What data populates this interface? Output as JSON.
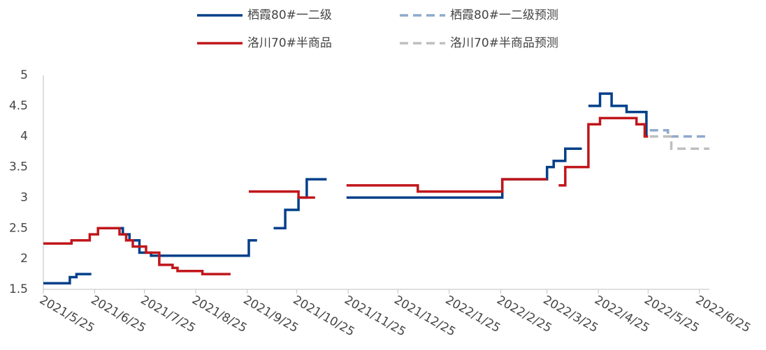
{
  "chart_data": {
    "type": "line",
    "xlim": [
      "2021/5/25",
      "2022/7/1"
    ],
    "xticks": [
      "2021/5/25",
      "2021/6/25",
      "2021/7/25",
      "2021/8/25",
      "2021/9/25",
      "2021/10/25",
      "2021/11/25",
      "2021/12/25",
      "2022/1/25",
      "2022/2/25",
      "2022/3/25",
      "2022/4/25",
      "2022/5/25",
      "2022/6/25"
    ],
    "ylim": [
      1.5,
      5
    ],
    "yticks": [
      1.5,
      2,
      2.5,
      3,
      3.5,
      4,
      4.5,
      5
    ],
    "series": [
      {
        "name": "栖霞80#一二级",
        "color": "#003f8a",
        "dash": false,
        "x": [
          "2021/5/25",
          "2021/6/10",
          "2021/6/10",
          "2021/6/14",
          "2021/6/14",
          "2021/6/23",
          null,
          "2021/6/27",
          "2021/7/12",
          "2021/7/12",
          "2021/7/16",
          "2021/7/16",
          "2021/7/22",
          "2021/7/22",
          "2021/7/29",
          "2021/7/29",
          "2021/9/26",
          "2021/9/26",
          "2021/10/1",
          null,
          "2021/10/11",
          "2021/10/18",
          "2021/10/18",
          "2021/10/26",
          "2021/10/26",
          "2021/10/31",
          "2021/10/31",
          "2021/11/12",
          null,
          "2021/11/24",
          "2022/2/26",
          "2022/2/26",
          "2022/3/25",
          "2022/3/25",
          "2022/3/29",
          "2022/3/29",
          "2022/4/5",
          "2022/4/5",
          "2022/4/15",
          null,
          "2022/4/19",
          "2022/4/26",
          "2022/4/26",
          "2022/5/3",
          "2022/5/3",
          "2022/5/12",
          "2022/5/12",
          "2022/5/24",
          "2022/5/24"
        ],
        "values": [
          1.6,
          1.6,
          1.7,
          1.7,
          1.75,
          1.75,
          null,
          2.5,
          2.5,
          2.4,
          2.4,
          2.3,
          2.3,
          2.1,
          2.1,
          2.05,
          2.05,
          2.3,
          2.3,
          null,
          2.5,
          2.5,
          2.8,
          2.8,
          3.0,
          3.0,
          3.3,
          3.3,
          null,
          3.0,
          3.0,
          3.3,
          3.3,
          3.5,
          3.5,
          3.6,
          3.6,
          3.8,
          3.8,
          null,
          4.5,
          4.5,
          4.7,
          4.7,
          4.5,
          4.5,
          4.4,
          4.4,
          4.0
        ]
      },
      {
        "name": "栖霞80#一二级预测",
        "color": "#8ea9cc",
        "dash": true,
        "x": [
          "2022/5/26",
          "2022/6/6",
          "2022/6/6",
          "2022/7/1"
        ],
        "values": [
          4.1,
          4.1,
          4.0,
          4.0
        ]
      },
      {
        "name": "洛川70#半商品",
        "color": "#c0161b",
        "dash": false,
        "x": [
          "2021/5/25",
          "2021/6/11",
          "2021/6/11",
          "2021/6/22",
          "2021/6/22",
          "2021/6/27",
          "2021/6/27",
          "2021/7/10",
          "2021/7/10",
          "2021/7/14",
          "2021/7/14",
          "2021/7/18",
          "2021/7/18",
          "2021/7/26",
          "2021/7/26",
          "2021/8/3",
          "2021/8/3",
          "2021/8/11",
          "2021/8/11",
          "2021/8/14",
          "2021/8/14",
          "2021/8/29",
          "2021/8/29",
          "2021/9/15",
          null,
          "2021/9/26",
          "2021/10/26",
          "2021/10/26",
          "2021/11/5",
          null,
          "2021/11/24",
          "2022/1/6",
          "2022/1/6",
          "2022/2/26",
          "2022/2/26",
          "2022/3/25",
          null,
          "2022/4/1",
          "2022/4/5",
          "2022/4/5",
          "2022/4/19",
          "2022/4/19",
          "2022/4/26",
          "2022/4/26",
          "2022/5/18",
          "2022/5/18",
          "2022/5/23",
          "2022/5/23",
          "2022/5/25"
        ],
        "values": [
          2.25,
          2.25,
          2.3,
          2.3,
          2.4,
          2.4,
          2.5,
          2.5,
          2.4,
          2.4,
          2.3,
          2.3,
          2.2,
          2.2,
          2.1,
          2.1,
          1.9,
          1.9,
          1.85,
          1.85,
          1.8,
          1.8,
          1.75,
          1.75,
          null,
          3.1,
          3.1,
          3.0,
          3.0,
          null,
          3.2,
          3.2,
          3.1,
          3.1,
          3.3,
          3.3,
          null,
          3.2,
          3.2,
          3.5,
          3.5,
          4.2,
          4.2,
          4.3,
          4.3,
          4.2,
          4.2,
          4.0,
          4.0
        ]
      },
      {
        "name": "洛川70#半商品预测",
        "color": "#bfbfbf",
        "dash": true,
        "x": [
          "2022/5/26",
          "2022/6/8",
          "2022/6/8",
          "2022/7/1"
        ],
        "values": [
          4.0,
          4.0,
          3.8,
          3.8
        ]
      }
    ]
  }
}
